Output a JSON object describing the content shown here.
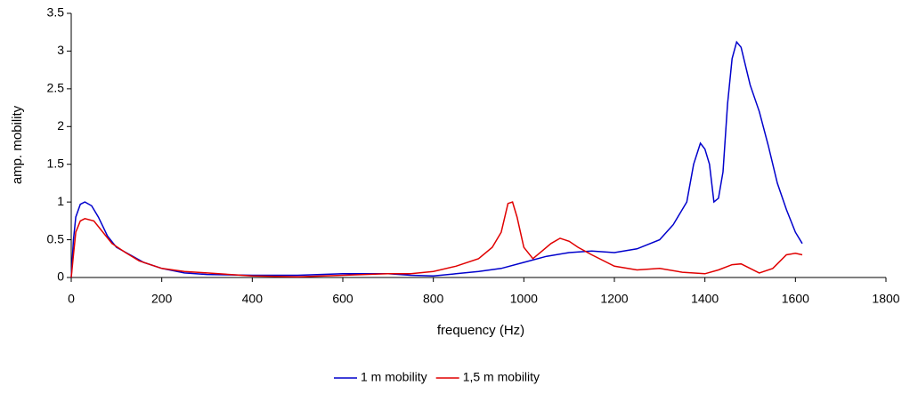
{
  "chart_data": {
    "type": "line",
    "x_label": "frequency (Hz)",
    "y_label": "amp. mobility",
    "xlim": [
      0,
      1800
    ],
    "xticks": [
      0,
      200,
      400,
      600,
      800,
      1000,
      1200,
      1400,
      1600,
      1800
    ],
    "ylim": [
      0,
      3.5
    ],
    "yticks": [
      0,
      0.5,
      1,
      1.5,
      2,
      2.5,
      3,
      3.5
    ],
    "grid": false,
    "legend": "bottom",
    "series": [
      {
        "name": "1 m mobility",
        "color": "#0000cc",
        "x": [
          0,
          5,
          10,
          20,
          30,
          45,
          60,
          80,
          100,
          130,
          160,
          200,
          250,
          300,
          400,
          500,
          600,
          700,
          750,
          800,
          850,
          900,
          950,
          1000,
          1050,
          1100,
          1150,
          1200,
          1250,
          1300,
          1330,
          1360,
          1375,
          1390,
          1400,
          1410,
          1420,
          1430,
          1440,
          1450,
          1460,
          1470,
          1480,
          1490,
          1500,
          1520,
          1540,
          1560,
          1580,
          1600,
          1615
        ],
        "values": [
          0,
          0.5,
          0.8,
          0.97,
          1.0,
          0.95,
          0.8,
          0.55,
          0.4,
          0.3,
          0.2,
          0.12,
          0.06,
          0.04,
          0.03,
          0.03,
          0.05,
          0.05,
          0.03,
          0.02,
          0.05,
          0.08,
          0.12,
          0.2,
          0.28,
          0.33,
          0.35,
          0.33,
          0.38,
          0.5,
          0.7,
          1.0,
          1.5,
          1.78,
          1.7,
          1.5,
          1.0,
          1.05,
          1.4,
          2.3,
          2.9,
          3.12,
          3.05,
          2.8,
          2.55,
          2.2,
          1.75,
          1.25,
          0.9,
          0.6,
          0.45
        ]
      },
      {
        "name": "1,5 m mobility",
        "color": "#e00000",
        "x": [
          0,
          5,
          10,
          20,
          30,
          50,
          70,
          90,
          120,
          150,
          200,
          250,
          300,
          400,
          500,
          600,
          700,
          750,
          800,
          850,
          900,
          930,
          950,
          965,
          975,
          985,
          1000,
          1020,
          1040,
          1060,
          1080,
          1100,
          1120,
          1150,
          1200,
          1250,
          1300,
          1350,
          1400,
          1430,
          1460,
          1480,
          1500,
          1520,
          1550,
          1580,
          1600,
          1615
        ],
        "values": [
          0,
          0.3,
          0.6,
          0.75,
          0.78,
          0.75,
          0.6,
          0.45,
          0.33,
          0.22,
          0.12,
          0.08,
          0.06,
          0.02,
          0.01,
          0.03,
          0.05,
          0.05,
          0.08,
          0.15,
          0.25,
          0.4,
          0.6,
          0.98,
          1.0,
          0.8,
          0.4,
          0.25,
          0.35,
          0.45,
          0.52,
          0.48,
          0.4,
          0.3,
          0.15,
          0.1,
          0.12,
          0.07,
          0.05,
          0.1,
          0.17,
          0.18,
          0.12,
          0.06,
          0.12,
          0.3,
          0.32,
          0.3
        ]
      }
    ]
  }
}
